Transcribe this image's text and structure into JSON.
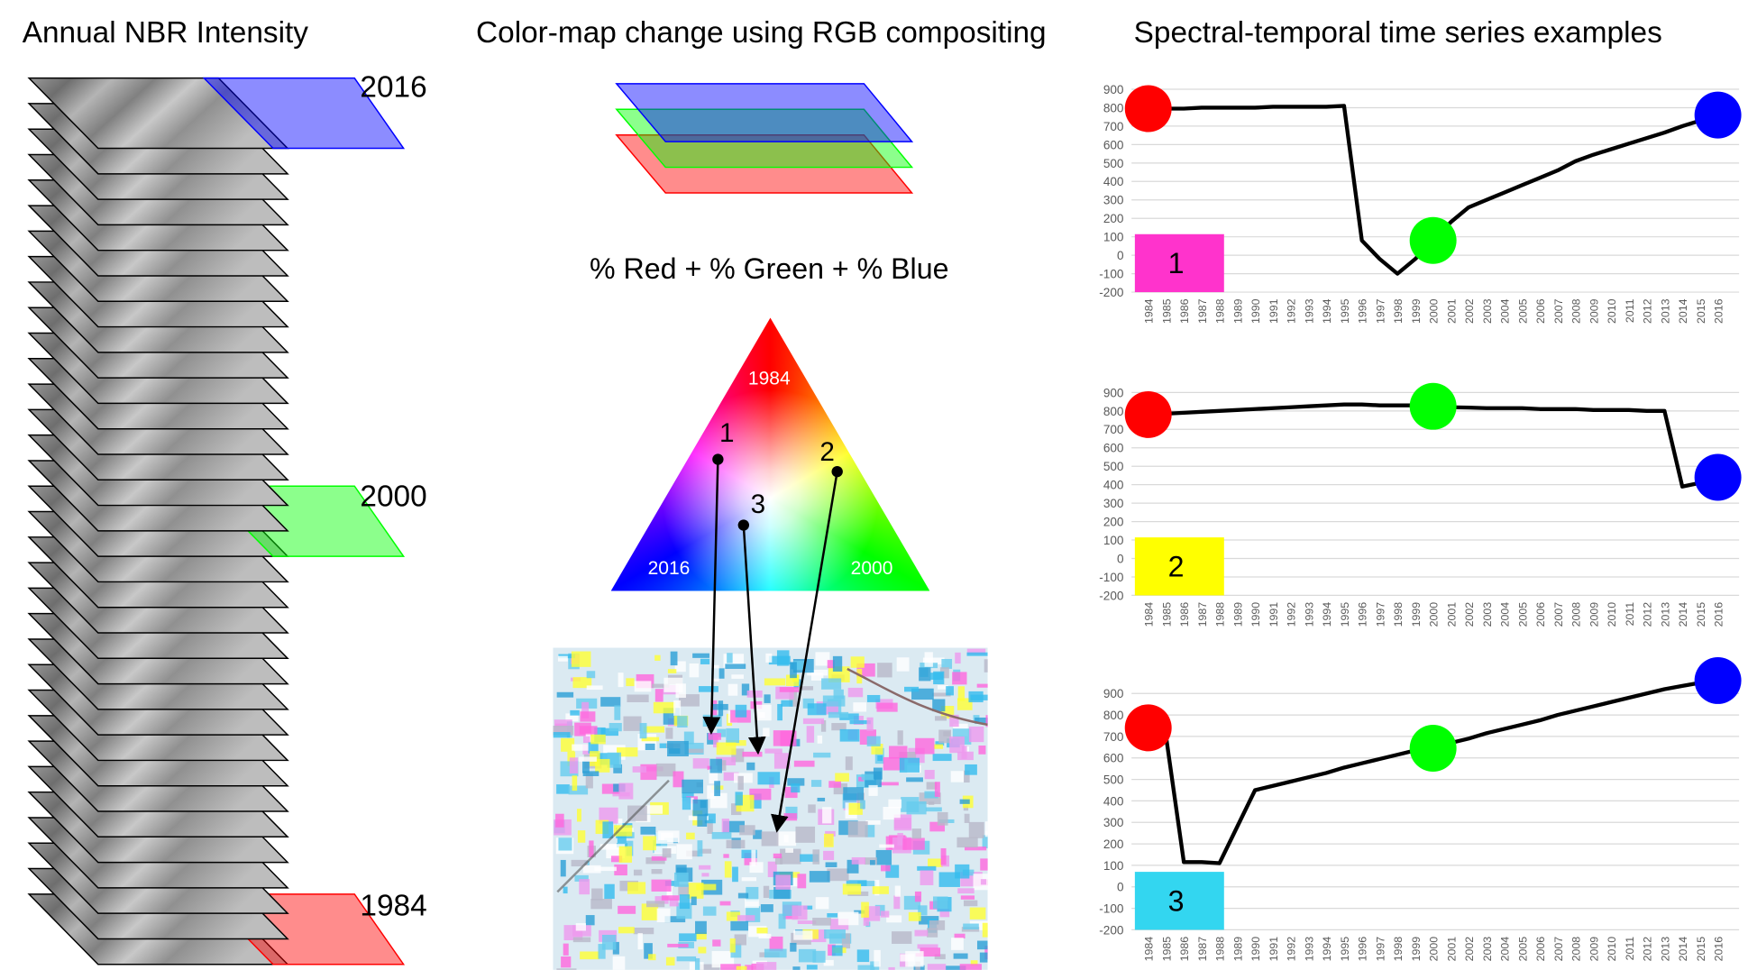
{
  "left": {
    "title": "Annual NBR Intensity",
    "sheets": [
      {
        "label": "2016",
        "color": "#0000ff"
      },
      {
        "label": "2000",
        "color": "#00ff00"
      },
      {
        "label": "1984",
        "color": "#ff0000"
      }
    ]
  },
  "middle": {
    "title": "Color-map change using RGB compositing",
    "formula": "% Red + % Green + % Blue",
    "triangle_labels": [
      "1984",
      "2016",
      "2000"
    ],
    "points": [
      "1",
      "2",
      "3"
    ]
  },
  "right_title": "Spectral-temporal time series examples",
  "chart_data": [
    {
      "type": "line",
      "x": [
        1984,
        1985,
        1986,
        1987,
        1988,
        1989,
        1990,
        1991,
        1992,
        1993,
        1994,
        1995,
        1996,
        1997,
        1998,
        1999,
        2000,
        2001,
        2002,
        2003,
        2004,
        2005,
        2006,
        2007,
        2008,
        2009,
        2010,
        2011,
        2012,
        2013,
        2014,
        2015,
        2016
      ],
      "values": [
        795,
        795,
        795,
        800,
        800,
        800,
        800,
        805,
        805,
        805,
        805,
        810,
        80,
        -20,
        -100,
        -20,
        80,
        180,
        260,
        300,
        340,
        380,
        420,
        460,
        510,
        545,
        575,
        605,
        635,
        665,
        700,
        730,
        760
      ],
      "color": "#000000",
      "ylim": [
        -200,
        900
      ],
      "yticks": [
        -200,
        -100,
        0,
        100,
        200,
        300,
        400,
        500,
        600,
        700,
        800,
        900
      ],
      "grid": true,
      "highlight_x": [
        1984,
        2000,
        2016
      ],
      "highlight_colors": [
        "#ff0000",
        "#00ff00",
        "#0000ff"
      ],
      "label": "1",
      "label_color": "#ff33cc"
    },
    {
      "type": "line",
      "x": [
        1984,
        1985,
        1986,
        1987,
        1988,
        1989,
        1990,
        1991,
        1992,
        1993,
        1994,
        1995,
        1996,
        1997,
        1998,
        1999,
        2000,
        2001,
        2002,
        2003,
        2004,
        2005,
        2006,
        2007,
        2008,
        2009,
        2010,
        2011,
        2012,
        2013,
        2014,
        2015,
        2016
      ],
      "values": [
        780,
        785,
        790,
        795,
        800,
        805,
        810,
        815,
        820,
        825,
        830,
        835,
        835,
        830,
        830,
        830,
        825,
        820,
        818,
        815,
        815,
        815,
        810,
        810,
        810,
        805,
        805,
        805,
        800,
        800,
        390,
        410,
        440
      ],
      "color": "#000000",
      "ylim": [
        -200,
        900
      ],
      "yticks": [
        -200,
        -100,
        0,
        100,
        200,
        300,
        400,
        500,
        600,
        700,
        800,
        900
      ],
      "grid": true,
      "highlight_x": [
        1984,
        2000,
        2016
      ],
      "highlight_colors": [
        "#ff0000",
        "#00ff00",
        "#0000ff"
      ],
      "label": "2",
      "label_color": "#ffff00"
    },
    {
      "type": "line",
      "x": [
        1984,
        1985,
        1986,
        1987,
        1988,
        1989,
        1990,
        1991,
        1992,
        1993,
        1994,
        1995,
        1996,
        1997,
        1998,
        1999,
        2000,
        2001,
        2002,
        2003,
        2004,
        2005,
        2006,
        2007,
        2008,
        2009,
        2010,
        2011,
        2012,
        2013,
        2014,
        2015,
        2016
      ],
      "values": [
        740,
        700,
        115,
        115,
        110,
        280,
        450,
        470,
        490,
        510,
        530,
        555,
        575,
        595,
        615,
        635,
        645,
        670,
        690,
        715,
        735,
        755,
        775,
        800,
        820,
        840,
        860,
        880,
        900,
        920,
        935,
        950,
        960
      ],
      "color": "#000000",
      "ylim": [
        -200,
        900
      ],
      "yticks": [
        -200,
        -100,
        0,
        100,
        200,
        300,
        400,
        500,
        600,
        700,
        800,
        900
      ],
      "grid": true,
      "highlight_x": [
        1984,
        2000,
        2016
      ],
      "highlight_colors": [
        "#ff0000",
        "#00ff00",
        "#0000ff"
      ],
      "label": "3",
      "label_color": "#33d6f0"
    }
  ]
}
